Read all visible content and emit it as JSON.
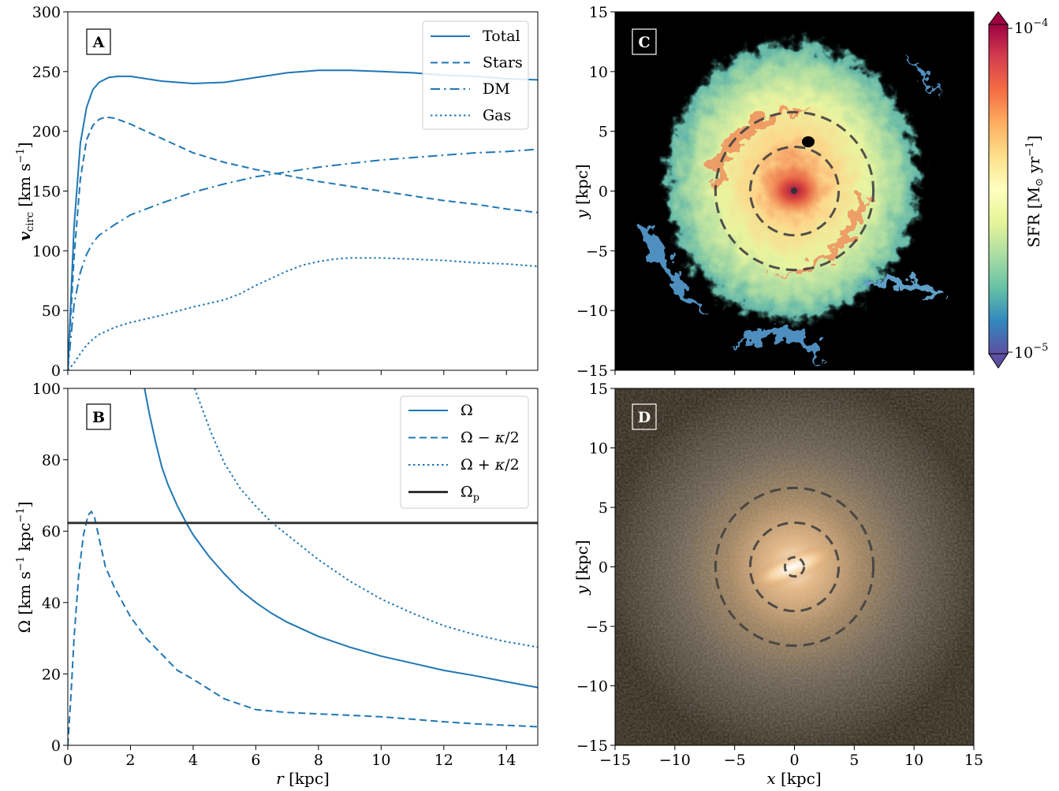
{
  "chart_data": [
    {
      "id": "A",
      "type": "line",
      "panel_label": "A",
      "xlabel": "",
      "ylabel": "v_circ [km s^-1]",
      "xlim": [
        0,
        15
      ],
      "ylim": [
        0,
        300
      ],
      "xticks": [
        0,
        2,
        4,
        6,
        8,
        10,
        12,
        14
      ],
      "yticks": [
        0,
        50,
        100,
        150,
        200,
        250,
        300
      ],
      "legend_position": "top-right",
      "series": [
        {
          "name": "Total",
          "style": "solid",
          "x": [
            0,
            0.2,
            0.4,
            0.6,
            0.8,
            1.0,
            1.3,
            1.6,
            2.0,
            3.0,
            4.0,
            5.0,
            6.0,
            7.0,
            8.0,
            9.0,
            10.0,
            11.0,
            12.0,
            13.0,
            14.0,
            15.0
          ],
          "y": [
            0,
            120,
            190,
            220,
            235,
            241,
            245,
            246,
            246,
            242,
            240,
            241,
            245,
            249,
            251,
            251,
            250,
            249,
            247,
            246,
            244,
            243
          ]
        },
        {
          "name": "Stars",
          "style": "dashed",
          "x": [
            0,
            0.2,
            0.4,
            0.6,
            0.8,
            1.0,
            1.2,
            1.5,
            2.0,
            3.0,
            4.0,
            5.0,
            6.0,
            7.0,
            8.0,
            9.0,
            10.0,
            11.0,
            12.0,
            13.0,
            14.0,
            15.0
          ],
          "y": [
            0,
            95,
            160,
            193,
            205,
            210,
            212,
            211,
            206,
            194,
            182,
            174,
            168,
            163,
            158,
            154,
            150,
            146,
            142,
            139,
            135,
            132
          ]
        },
        {
          "name": "DM",
          "style": "dashdot",
          "x": [
            0,
            0.2,
            0.4,
            0.6,
            0.8,
            1.0,
            1.5,
            2.0,
            3.0,
            4.0,
            5.0,
            6.0,
            7.0,
            8.0,
            9.0,
            10.0,
            11.0,
            12.0,
            13.0,
            14.0,
            15.0
          ],
          "y": [
            0,
            55,
            82,
            97,
            107,
            113,
            122,
            130,
            140,
            149,
            156,
            162,
            166,
            170,
            173,
            176,
            178,
            180,
            182,
            183,
            185
          ]
        },
        {
          "name": "Gas",
          "style": "dotted",
          "x": [
            0,
            0.2,
            0.4,
            0.6,
            0.8,
            1.0,
            1.5,
            2.0,
            3.0,
            4.0,
            4.5,
            5.0,
            5.5,
            6.0,
            6.5,
            7.0,
            7.5,
            8.0,
            8.5,
            9.0,
            10.0,
            11.0,
            12.0,
            13.0,
            14.0,
            15.0
          ],
          "y": [
            0,
            6,
            14,
            21,
            26,
            30,
            36,
            40,
            46,
            53,
            56,
            59,
            64,
            71,
            77,
            83,
            88,
            91,
            93,
            94,
            94,
            93,
            92,
            90,
            89,
            87
          ]
        }
      ]
    },
    {
      "id": "B",
      "type": "line",
      "panel_label": "B",
      "xlabel": "r [kpc]",
      "ylabel": "Ω [km s^-1 kpc^-1]",
      "xlim": [
        0,
        15
      ],
      "ylim": [
        0,
        100
      ],
      "xticks": [
        0,
        2,
        4,
        6,
        8,
        10,
        12,
        14
      ],
      "yticks": [
        0,
        20,
        40,
        60,
        80,
        100
      ],
      "legend_position": "top-right",
      "series": [
        {
          "name": "Ω",
          "style": "solid",
          "x": [
            2.45,
            2.6,
            2.8,
            3.0,
            3.2,
            3.5,
            3.8,
            4.0,
            4.5,
            5.0,
            5.5,
            6.0,
            6.5,
            7.0,
            7.5,
            8.0,
            9.0,
            10.0,
            11.0,
            12.0,
            13.0,
            14.0,
            15.0
          ],
          "y": [
            100,
            93,
            85,
            78,
            73,
            67,
            62,
            59,
            53,
            48,
            43.5,
            40,
            37,
            34.5,
            32.5,
            30.5,
            27.5,
            25,
            23,
            21,
            19.5,
            17.8,
            16.2
          ]
        },
        {
          "name": "Ω − κ/2",
          "style": "dashed",
          "x": [
            0,
            0.1,
            0.2,
            0.35,
            0.5,
            0.65,
            0.75,
            0.85,
            1.0,
            1.2,
            1.5,
            2.0,
            2.5,
            3.0,
            3.5,
            4.0,
            5.0,
            6.0,
            7.0,
            8.0,
            9.0,
            10.0,
            11.0,
            12.0,
            13.0,
            14.0,
            15.0
          ],
          "y": [
            0,
            14,
            30,
            48,
            59,
            64.5,
            65.5,
            64,
            58,
            50,
            44,
            36,
            30,
            25.5,
            21,
            18.5,
            13,
            10,
            9.2,
            8.8,
            8.4,
            8,
            7.3,
            6.6,
            6,
            5.6,
            5.2
          ]
        },
        {
          "name": "Ω + κ/2",
          "style": "dotted",
          "x": [
            4.05,
            4.3,
            4.6,
            5.0,
            5.5,
            6.0,
            6.5,
            7.0,
            7.5,
            8.0,
            8.5,
            9.0,
            10.0,
            11.0,
            12.0,
            13.0,
            14.0,
            15.0
          ],
          "y": [
            100,
            94,
            87,
            79,
            72,
            67,
            62.5,
            59,
            55.5,
            52,
            49,
            46,
            41,
            37,
            33.5,
            31,
            29,
            27.5
          ]
        },
        {
          "name": "Ω_p",
          "style": "solid-black",
          "x": [
            0,
            15
          ],
          "y": [
            62.3,
            62.3
          ]
        }
      ]
    },
    {
      "id": "C",
      "type": "heatmap",
      "panel_label": "C",
      "xlabel": "",
      "ylabel": "y [kpc]",
      "xlim": [
        -15,
        15
      ],
      "ylim": [
        -15,
        15
      ],
      "xticks": [
        -15,
        -10,
        -5,
        0,
        5,
        10,
        15
      ],
      "yticks": [
        -15,
        -10,
        -5,
        0,
        5,
        10,
        15
      ],
      "colorbar": {
        "label": "SFR [M⊙ yr^-1]",
        "scale": "log",
        "min_label": "10^-5",
        "max_label": "10^-4",
        "colormap": "Spectral_r"
      },
      "circles_kpc": [
        3.7,
        6.6
      ]
    },
    {
      "id": "D",
      "type": "heatmap",
      "panel_label": "D",
      "xlabel": "x [kpc]",
      "ylabel": "y [kpc]",
      "xlim": [
        -15,
        15
      ],
      "ylim": [
        -15,
        15
      ],
      "xticks": [
        -15,
        -10,
        -5,
        0,
        5,
        10,
        15
      ],
      "yticks": [
        -15,
        -10,
        -5,
        0,
        5,
        10,
        15
      ],
      "circles_kpc": [
        0.8,
        3.7,
        6.6
      ]
    }
  ],
  "colors": {
    "curve": "#1f77b4",
    "pattern_speed": "#333333",
    "sfr_background": "#000000",
    "stellar_background": "#3a3020"
  }
}
